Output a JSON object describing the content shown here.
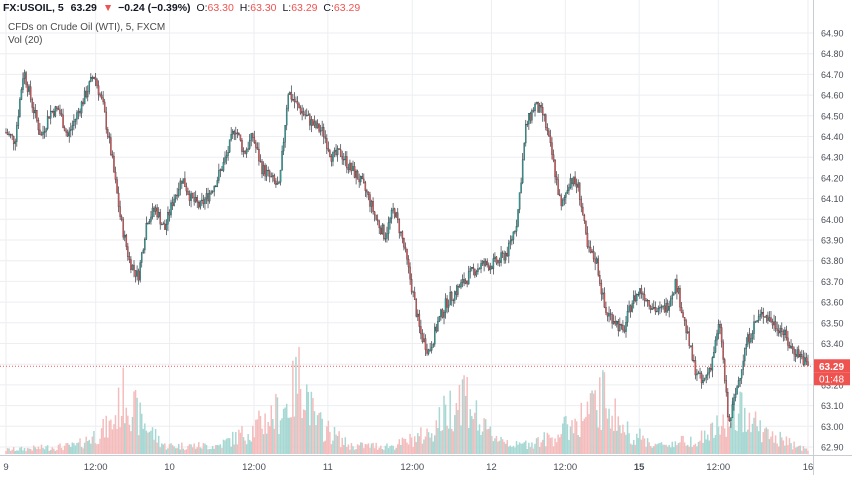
{
  "header": {
    "symbol": "FX:USOIL, 5",
    "last": "63.29",
    "change_arrow": "▼",
    "change": "−0.24 (−0.39%)",
    "o_label": "O:",
    "o_value": "63.30",
    "h_label": "H:",
    "h_value": "63.30",
    "l_label": "L:",
    "l_value": "63.29",
    "c_label": "C:",
    "c_value": "63.29"
  },
  "legend": {
    "source": "CFDs on Crude Oil (WTI), 5, FXCM",
    "volume": "Vol (20)"
  },
  "price_axis": {
    "ticks": [
      "64.90",
      "64.80",
      "64.70",
      "64.60",
      "64.50",
      "64.40",
      "64.30",
      "64.20",
      "64.10",
      "64.00",
      "63.90",
      "63.80",
      "63.70",
      "63.60",
      "63.50",
      "63.40",
      "63.30",
      "63.20",
      "63.10",
      "63.00",
      "62.90"
    ]
  },
  "time_axis": {
    "ticks": [
      "9",
      "12:00",
      "10",
      "12:00",
      "11",
      "12:00",
      "12",
      "12:00",
      "15",
      "12:00",
      "16"
    ]
  },
  "price_label": {
    "value": "63.29",
    "countdown": "01:48"
  },
  "colors": {
    "up": "#26a69a",
    "down": "#ef5350",
    "grid": "#eceef1",
    "vol_up": "#a8d8d3",
    "vol_down": "#f4bdbd",
    "candle": "#333840"
  },
  "chart_data": {
    "type": "candlestick",
    "title": "CFDs on Crude Oil (WTI), 5, FXCM",
    "ylim": [
      62.85,
      64.95
    ],
    "ytick_values": [
      64.9,
      64.8,
      64.7,
      64.6,
      64.5,
      64.4,
      64.3,
      64.2,
      64.1,
      64.0,
      63.9,
      63.8,
      63.7,
      63.6,
      63.5,
      63.4,
      63.3,
      63.2,
      63.1,
      63.0,
      62.9
    ],
    "session_days": [
      "9",
      "10",
      "11",
      "12",
      "15",
      "16"
    ],
    "close_path": [
      [
        0,
        64.42
      ],
      [
        2,
        64.38
      ],
      [
        4,
        64.72
      ],
      [
        6,
        64.55
      ],
      [
        8,
        64.4
      ],
      [
        10,
        64.52
      ],
      [
        12,
        64.53
      ],
      [
        14,
        64.4
      ],
      [
        16,
        64.5
      ],
      [
        18,
        64.6
      ],
      [
        20,
        64.7
      ],
      [
        22,
        64.55
      ],
      [
        24,
        64.3
      ],
      [
        26,
        64.0
      ],
      [
        28,
        63.8
      ],
      [
        30,
        63.72
      ],
      [
        32,
        64.0
      ],
      [
        34,
        64.05
      ],
      [
        36,
        63.95
      ],
      [
        38,
        64.1
      ],
      [
        40,
        64.2
      ],
      [
        42,
        64.1
      ],
      [
        44,
        64.06
      ],
      [
        46,
        64.12
      ],
      [
        48,
        64.2
      ],
      [
        50,
        64.3
      ],
      [
        52,
        64.45
      ],
      [
        54,
        64.32
      ],
      [
        56,
        64.4
      ],
      [
        58,
        64.25
      ],
      [
        60,
        64.2
      ],
      [
        62,
        64.15
      ],
      [
        64,
        64.62
      ],
      [
        66,
        64.55
      ],
      [
        68,
        64.5
      ],
      [
        70,
        64.45
      ],
      [
        72,
        64.42
      ],
      [
        74,
        64.3
      ],
      [
        76,
        64.32
      ],
      [
        78,
        64.25
      ],
      [
        80,
        64.2
      ],
      [
        82,
        64.12
      ],
      [
        84,
        64.0
      ],
      [
        86,
        63.92
      ],
      [
        88,
        64.05
      ],
      [
        90,
        63.9
      ],
      [
        92,
        63.68
      ],
      [
        94,
        63.45
      ],
      [
        96,
        63.36
      ],
      [
        98,
        63.5
      ],
      [
        100,
        63.6
      ],
      [
        102,
        63.65
      ],
      [
        104,
        63.7
      ],
      [
        106,
        63.75
      ],
      [
        108,
        63.78
      ],
      [
        110,
        63.78
      ],
      [
        112,
        63.8
      ],
      [
        114,
        63.85
      ],
      [
        116,
        64.0
      ],
      [
        118,
        64.45
      ],
      [
        120,
        64.55
      ],
      [
        122,
        64.5
      ],
      [
        124,
        64.3
      ],
      [
        126,
        64.05
      ],
      [
        128,
        64.2
      ],
      [
        130,
        64.15
      ],
      [
        132,
        63.85
      ],
      [
        134,
        63.8
      ],
      [
        136,
        63.55
      ],
      [
        138,
        63.52
      ],
      [
        140,
        63.45
      ],
      [
        142,
        63.6
      ],
      [
        144,
        63.66
      ],
      [
        146,
        63.6
      ],
      [
        148,
        63.55
      ],
      [
        150,
        63.58
      ],
      [
        152,
        63.7
      ],
      [
        154,
        63.5
      ],
      [
        156,
        63.3
      ],
      [
        158,
        63.2
      ],
      [
        160,
        63.3
      ],
      [
        162,
        63.5
      ],
      [
        164,
        63.0
      ],
      [
        166,
        63.2
      ],
      [
        168,
        63.4
      ],
      [
        170,
        63.5
      ],
      [
        172,
        63.55
      ],
      [
        174,
        63.5
      ],
      [
        176,
        63.47
      ],
      [
        178,
        63.38
      ],
      [
        180,
        63.35
      ],
      [
        182,
        63.29
      ]
    ],
    "volume_envelope": [
      [
        0,
        0.05
      ],
      [
        16,
        0.1
      ],
      [
        24,
        0.35
      ],
      [
        27,
        0.75
      ],
      [
        30,
        0.45
      ],
      [
        36,
        0.1
      ],
      [
        48,
        0.1
      ],
      [
        56,
        0.3
      ],
      [
        64,
        0.6
      ],
      [
        67,
        1.0
      ],
      [
        70,
        0.4
      ],
      [
        78,
        0.1
      ],
      [
        88,
        0.1
      ],
      [
        96,
        0.25
      ],
      [
        102,
        0.65
      ],
      [
        104,
        0.8
      ],
      [
        108,
        0.3
      ],
      [
        116,
        0.1
      ],
      [
        124,
        0.2
      ],
      [
        132,
        0.5
      ],
      [
        136,
        0.7
      ],
      [
        140,
        0.3
      ],
      [
        148,
        0.1
      ],
      [
        158,
        0.2
      ],
      [
        164,
        0.4
      ],
      [
        168,
        0.55
      ],
      [
        172,
        0.25
      ],
      [
        182,
        0.05
      ]
    ]
  }
}
